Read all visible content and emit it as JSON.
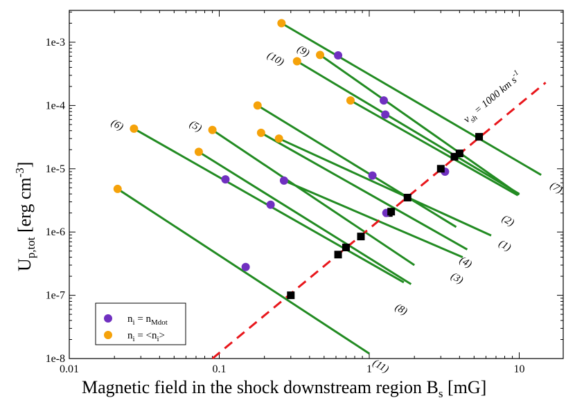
{
  "chart_data": {
    "type": "scatter",
    "xscale": "log",
    "yscale": "log",
    "xlim": [
      0.01,
      20
    ],
    "ylim": [
      1e-08,
      0.003
    ],
    "grid": false,
    "xlabel": "Magnetic field in the shock downstream region  B",
    "xlabel_sub": "s",
    "xlabel_unit": " [mG]",
    "ylabel": "U",
    "ylabel_sub": "p,tot",
    "ylabel_unit": " [erg cm",
    "ylabel_sup": "-3",
    "ylabel_close": "]",
    "x_ticks": [
      {
        "value": 0.01,
        "label": "0.01"
      },
      {
        "value": 0.1,
        "label": "0.1"
      },
      {
        "value": 1,
        "label": "1"
      },
      {
        "value": 10,
        "label": "10"
      }
    ],
    "y_ticks": [
      {
        "value": 1e-08,
        "label": "1e-8"
      },
      {
        "value": 1e-07,
        "label": "1e-7"
      },
      {
        "value": 1e-06,
        "label": "1e-6"
      },
      {
        "value": 1e-05,
        "label": "1e-5"
      },
      {
        "value": 0.0001,
        "label": "1e-4"
      },
      {
        "value": 0.001,
        "label": "1e-3"
      }
    ],
    "reference_line": {
      "label": "v",
      "label_sub": "sh",
      "label_rest": " = 1000 km s",
      "label_sup": "-1",
      "color": "#e8161b",
      "points": [
        [
          0.09,
          1e-08
        ],
        [
          15,
          0.00023
        ]
      ]
    },
    "line_color": "#228b22",
    "series": [
      {
        "id": "1",
        "label": "(1)",
        "x0": 0.25,
        "y0": 3e-05,
        "x1": 6.5,
        "y1": 8.8e-07,
        "mdot": [
          1.05,
          7.8e-06
        ],
        "mean": [
          0.25,
          3e-05
        ],
        "square": [
          1.8,
          3.5e-06
        ]
      },
      {
        "id": "2",
        "label": "(2)",
        "x0": 0.75,
        "y0": 0.00012,
        "x1": 9.8,
        "y1": 3.8e-06,
        "mdot": [
          3.2,
          9e-06
        ],
        "mean": [
          0.75,
          0.00012
        ],
        "square": [
          3.0,
          1e-05
        ]
      },
      {
        "id": "3",
        "label": "(3)",
        "x0": 0.27,
        "y0": 6.5e-06,
        "x1": 4.2,
        "y1": 4e-07,
        "mdot": [
          0.27,
          6.5e-06
        ],
        "mean": null,
        "square": [
          1.35,
          2e-06
        ]
      },
      {
        "id": "4",
        "label": "(4)",
        "x0": 0.19,
        "y0": 3.7e-05,
        "x1": 4.5,
        "y1": 5.3e-07,
        "mdot": [
          1.3,
          2e-06
        ],
        "mean": [
          0.19,
          3.7e-05
        ],
        "square": [
          1.4,
          2.1e-06
        ]
      },
      {
        "id": "5",
        "label": "(5)",
        "x0": 0.09,
        "y0": 4.1e-05,
        "x1": 2.0,
        "y1": 3e-07,
        "mdot": [
          0.22,
          2.7e-06
        ],
        "mean": [
          0.09,
          4.1e-05
        ],
        "square": [
          0.88,
          8.5e-07
        ]
      },
      {
        "id": "6",
        "label": "(6)",
        "x0": 0.027,
        "y0": 4.3e-05,
        "x1": 1.7,
        "y1": 1.6e-07,
        "mdot": [
          0.11,
          6.8e-06
        ],
        "mean": [
          0.027,
          4.3e-05
        ],
        "square": [
          0.7,
          5.7e-07
        ]
      },
      {
        "id": "7",
        "label": "(7)",
        "x0": 0.26,
        "y0": 0.002,
        "x1": 14.0,
        "y1": 8e-06,
        "mdot": [
          0.62,
          0.00062
        ],
        "mean": [
          0.26,
          0.002
        ],
        "square": [
          5.4,
          3.2e-05
        ]
      },
      {
        "id": "8",
        "label": "(8)",
        "x0": 0.073,
        "y0": 1.85e-05,
        "x1": 1.9,
        "y1": 1.5e-07,
        "mdot": null,
        "mean": [
          0.073,
          1.85e-05
        ],
        "square": [
          0.62,
          4.4e-07
        ]
      },
      {
        "id": "9",
        "label": "(9)",
        "x0": 0.47,
        "y0": 0.00063,
        "x1": 10.0,
        "y1": 3.9e-06,
        "mdot": [
          1.25,
          0.00012
        ],
        "mean": [
          0.47,
          0.00063
        ],
        "square": [
          4.0,
          1.75e-05
        ]
      },
      {
        "id": "10",
        "label": "(10)",
        "x0": 0.33,
        "y0": 0.0005,
        "x1": 10.0,
        "y1": 4e-06,
        "mdot": [
          1.28,
          7.2e-05
        ],
        "mean": [
          0.33,
          0.0005
        ],
        "square": [
          3.7,
          1.55e-05
        ]
      },
      {
        "id": "11",
        "label": "(11)",
        "x0": 0.021,
        "y0": 4.8e-06,
        "x1": 1.0,
        "y1": 1.2e-08,
        "mdot": [
          0.15,
          2.8e-07
        ],
        "mean": [
          0.021,
          4.8e-06
        ],
        "square": [
          0.3,
          1e-07
        ]
      },
      {
        "id": "s",
        "label": "",
        "x0": 0.18,
        "y0": 0.0001,
        "x1": 3.8,
        "y1": 1.2e-06,
        "mdot": null,
        "mean": [
          0.18,
          0.0001
        ],
        "square": null
      }
    ],
    "legend": {
      "position": "bottom-left",
      "entries": [
        {
          "marker": "#7030c0",
          "text": "n",
          "sub": "i",
          "mid": " = n",
          "sub2": "Mdot",
          "tail": ""
        },
        {
          "marker": "#f5a20a",
          "text": "n",
          "sub": "i",
          "mid": " = <n",
          "sub2": "i",
          "tail": ">"
        }
      ]
    },
    "colors": {
      "mdot": "#7030c0",
      "mean": "#f5a20a",
      "square": "#000000"
    }
  }
}
